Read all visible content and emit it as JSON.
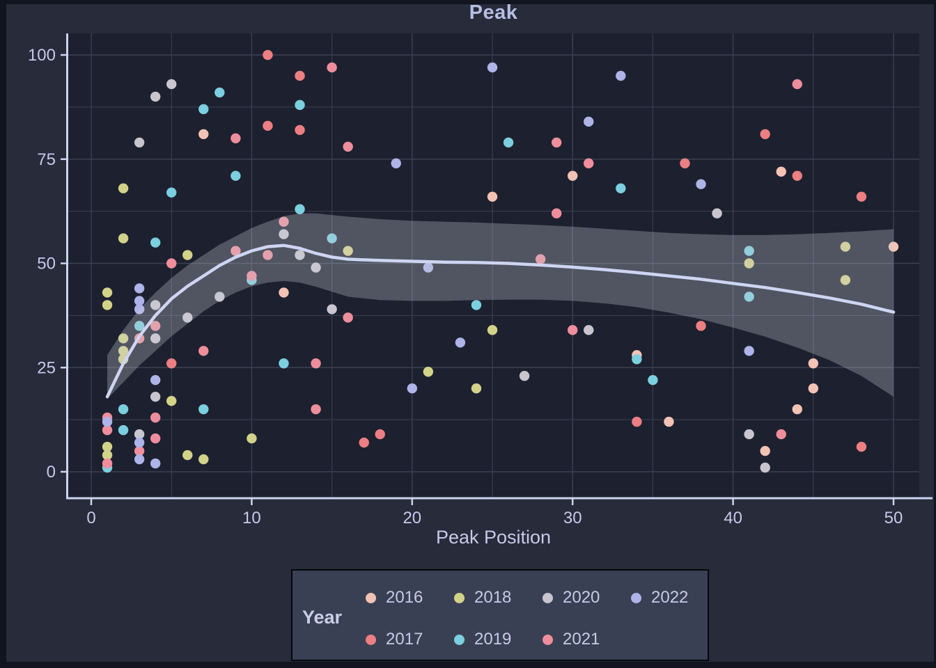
{
  "figure": {
    "title": "Peak",
    "background": "#272b3a",
    "panel_background": "#1d202e",
    "grid_color": "#3b4053",
    "axis_color": "#ccd3ee",
    "text_color": "#c5cae8",
    "title_color": "#b7bde3"
  },
  "legend": {
    "title": "Year",
    "rows": [
      [
        "2016",
        "2018",
        "2020",
        "2022"
      ],
      [
        "2017",
        "2019",
        "2021"
      ]
    ]
  },
  "chart_data": {
    "type": "scatter",
    "title": "Peak",
    "xlabel": "Peak Position",
    "ylabel": "",
    "xlim": [
      0,
      50
    ],
    "ylim": [
      0,
      100
    ],
    "x_major_ticks": [
      0,
      10,
      20,
      30,
      40,
      50
    ],
    "x_minor_gridlines": [
      5,
      15,
      25,
      35,
      45
    ],
    "y_major_ticks": [
      0,
      25,
      50,
      75,
      100
    ],
    "y_minor_gridlines": [
      12.5,
      37.5,
      62.5,
      87.5
    ],
    "legend_title": "Year",
    "grid": true,
    "legend_position": "bottom-center",
    "series": [
      {
        "name": "2016",
        "color": "#f2c3b5",
        "points": [
          [
            7,
            81
          ],
          [
            12,
            43
          ],
          [
            25,
            66
          ],
          [
            30,
            71
          ],
          [
            34,
            28
          ],
          [
            36,
            12
          ],
          [
            42,
            5
          ],
          [
            43,
            72
          ],
          [
            44,
            15
          ],
          [
            45,
            26
          ],
          [
            45,
            20
          ],
          [
            50,
            54
          ]
        ]
      },
      {
        "name": "2017",
        "color": "#ec7f84",
        "points": [
          [
            5,
            26
          ],
          [
            11,
            100
          ],
          [
            11,
            83
          ],
          [
            13,
            95
          ],
          [
            13,
            82
          ],
          [
            17,
            7
          ],
          [
            18,
            9
          ],
          [
            34,
            12
          ],
          [
            37,
            74
          ],
          [
            38,
            35
          ],
          [
            42,
            81
          ],
          [
            44,
            71
          ],
          [
            48,
            66
          ],
          [
            48,
            6
          ]
        ]
      },
      {
        "name": "2018",
        "color": "#d3d289",
        "points": [
          [
            1,
            43
          ],
          [
            1,
            40
          ],
          [
            1,
            6
          ],
          [
            1,
            4
          ],
          [
            2,
            68
          ],
          [
            2,
            56
          ],
          [
            2,
            32
          ],
          [
            2,
            29
          ],
          [
            2,
            27
          ],
          [
            5,
            17
          ],
          [
            6,
            52
          ],
          [
            6,
            4
          ],
          [
            7,
            3
          ],
          [
            10,
            8
          ],
          [
            16,
            53
          ],
          [
            21,
            24
          ],
          [
            24,
            20
          ],
          [
            25,
            34
          ],
          [
            41,
            50
          ],
          [
            47,
            54
          ],
          [
            47,
            46
          ]
        ]
      },
      {
        "name": "2019",
        "color": "#7bcfdf",
        "points": [
          [
            1,
            1
          ],
          [
            2,
            15
          ],
          [
            2,
            10
          ],
          [
            3,
            35
          ],
          [
            4,
            55
          ],
          [
            5,
            67
          ],
          [
            7,
            87
          ],
          [
            7,
            15
          ],
          [
            8,
            91
          ],
          [
            9,
            71
          ],
          [
            10,
            46
          ],
          [
            12,
            26
          ],
          [
            13,
            88
          ],
          [
            13,
            63
          ],
          [
            15,
            56
          ],
          [
            24,
            40
          ],
          [
            26,
            79
          ],
          [
            33,
            68
          ],
          [
            34,
            27
          ],
          [
            35,
            22
          ],
          [
            41,
            53
          ],
          [
            41,
            42
          ]
        ]
      },
      {
        "name": "2020",
        "color": "#c9c5cf",
        "points": [
          [
            3,
            79
          ],
          [
            3,
            9
          ],
          [
            4,
            90
          ],
          [
            4,
            40
          ],
          [
            4,
            32
          ],
          [
            4,
            18
          ],
          [
            5,
            93
          ],
          [
            6,
            37
          ],
          [
            8,
            42
          ],
          [
            12,
            57
          ],
          [
            13,
            52
          ],
          [
            14,
            49
          ],
          [
            15,
            39
          ],
          [
            27,
            23
          ],
          [
            31,
            34
          ],
          [
            39,
            62
          ],
          [
            41,
            9
          ],
          [
            42,
            1
          ]
        ]
      },
      {
        "name": "2021",
        "color": "#ee8e9d",
        "points": [
          [
            1,
            13
          ],
          [
            1,
            10
          ],
          [
            1,
            2
          ],
          [
            3,
            32
          ],
          [
            3,
            5
          ],
          [
            4,
            35
          ],
          [
            4,
            13
          ],
          [
            4,
            8
          ],
          [
            5,
            50
          ],
          [
            7,
            29
          ],
          [
            9,
            80
          ],
          [
            9,
            53
          ],
          [
            10,
            47
          ],
          [
            11,
            52
          ],
          [
            12,
            60
          ],
          [
            14,
            26
          ],
          [
            14,
            15
          ],
          [
            15,
            97
          ],
          [
            16,
            78
          ],
          [
            16,
            37
          ],
          [
            28,
            51
          ],
          [
            29,
            79
          ],
          [
            29,
            62
          ],
          [
            30,
            34
          ],
          [
            31,
            74
          ],
          [
            43,
            9
          ],
          [
            44,
            93
          ]
        ]
      },
      {
        "name": "2022",
        "color": "#aeb3e8",
        "points": [
          [
            1,
            12
          ],
          [
            3,
            44
          ],
          [
            3,
            41
          ],
          [
            3,
            39
          ],
          [
            3,
            7
          ],
          [
            3,
            3
          ],
          [
            4,
            22
          ],
          [
            4,
            2
          ],
          [
            19,
            74
          ],
          [
            20,
            20
          ],
          [
            21,
            49
          ],
          [
            23,
            31
          ],
          [
            25,
            97
          ],
          [
            31,
            84
          ],
          [
            33,
            95
          ],
          [
            38,
            69
          ],
          [
            41,
            29
          ]
        ]
      }
    ],
    "trend_line": {
      "color": "#ced5f2",
      "points": [
        [
          1,
          18
        ],
        [
          2,
          26
        ],
        [
          3,
          32.5
        ],
        [
          4,
          37.5
        ],
        [
          5,
          41.5
        ],
        [
          6,
          44.5
        ],
        [
          7,
          47
        ],
        [
          8,
          49.5
        ],
        [
          9,
          51.5
        ],
        [
          10,
          53
        ],
        [
          11,
          54
        ],
        [
          12,
          54.3
        ],
        [
          13,
          53.6
        ],
        [
          14,
          52.4
        ],
        [
          15,
          51.5
        ],
        [
          16,
          51
        ],
        [
          18,
          50.7
        ],
        [
          20,
          50.5
        ],
        [
          22,
          50.3
        ],
        [
          24,
          50.2
        ],
        [
          26,
          50
        ],
        [
          28,
          49.6
        ],
        [
          30,
          49.1
        ],
        [
          32,
          48.5
        ],
        [
          34,
          47.8
        ],
        [
          36,
          47
        ],
        [
          38,
          46.2
        ],
        [
          40,
          45.2
        ],
        [
          42,
          44.2
        ],
        [
          44,
          43
        ],
        [
          46,
          41.7
        ],
        [
          48,
          40.2
        ],
        [
          50,
          38.3
        ]
      ]
    },
    "confidence_band": {
      "color": "rgba(201,204,216,0.30)",
      "upper": [
        [
          1,
          28
        ],
        [
          2,
          34
        ],
        [
          3,
          39
        ],
        [
          4,
          43
        ],
        [
          5,
          46.5
        ],
        [
          6,
          49.5
        ],
        [
          7,
          52
        ],
        [
          8,
          54.5
        ],
        [
          9,
          56.5
        ],
        [
          10,
          58.5
        ],
        [
          11,
          60
        ],
        [
          12,
          61.3
        ],
        [
          13,
          62
        ],
        [
          14,
          62
        ],
        [
          15,
          61.6
        ],
        [
          16,
          61.2
        ],
        [
          18,
          60.6
        ],
        [
          20,
          60.2
        ],
        [
          22,
          60
        ],
        [
          24,
          59.8
        ],
        [
          26,
          59.5
        ],
        [
          28,
          59.2
        ],
        [
          30,
          58.8
        ],
        [
          32,
          58.3
        ],
        [
          34,
          57.8
        ],
        [
          36,
          57.3
        ],
        [
          38,
          57
        ],
        [
          40,
          56.8
        ],
        [
          42,
          56.8
        ],
        [
          44,
          57
        ],
        [
          46,
          57.3
        ],
        [
          48,
          57.7
        ],
        [
          50,
          58.2
        ]
      ],
      "lower": [
        [
          1,
          17.5
        ],
        [
          2,
          21.5
        ],
        [
          3,
          25.5
        ],
        [
          4,
          29
        ],
        [
          5,
          32.5
        ],
        [
          6,
          35.5
        ],
        [
          7,
          38.5
        ],
        [
          8,
          41
        ],
        [
          9,
          43
        ],
        [
          10,
          44.5
        ],
        [
          11,
          45.4
        ],
        [
          12,
          45.8
        ],
        [
          13,
          45.4
        ],
        [
          14,
          44.4
        ],
        [
          15,
          43.2
        ],
        [
          16,
          42
        ],
        [
          18,
          41.2
        ],
        [
          20,
          41
        ],
        [
          22,
          41
        ],
        [
          24,
          41.2
        ],
        [
          26,
          41.3
        ],
        [
          28,
          41.3
        ],
        [
          30,
          41
        ],
        [
          32,
          40.4
        ],
        [
          34,
          39.5
        ],
        [
          36,
          38.2
        ],
        [
          38,
          36.6
        ],
        [
          40,
          34.6
        ],
        [
          42,
          32.4
        ],
        [
          44,
          29.8
        ],
        [
          46,
          26.8
        ],
        [
          48,
          23
        ],
        [
          50,
          18
        ]
      ]
    }
  }
}
